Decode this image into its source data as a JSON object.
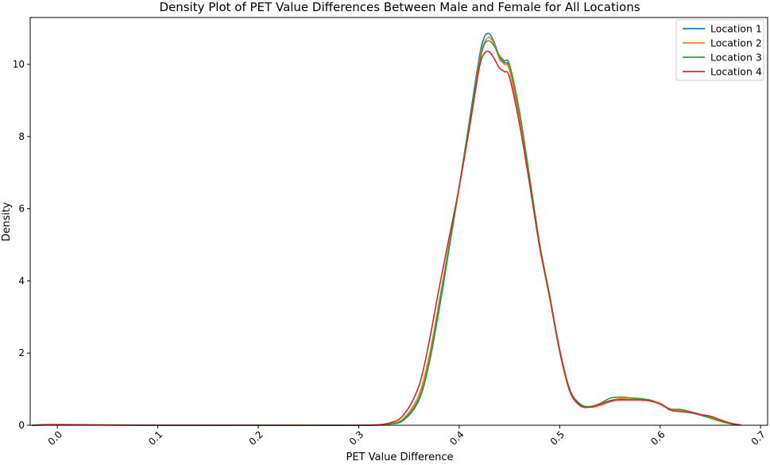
{
  "chart_data": {
    "type": "line",
    "title": "Density Plot of PET Value Differences Between Male and Female for All Locations",
    "xlabel": "PET Value Difference",
    "ylabel": "Density",
    "xlim": [
      -0.027,
      0.707
    ],
    "ylim": [
      0,
      11.3
    ],
    "xticks": [
      0.0,
      0.1,
      0.2,
      0.3,
      0.4,
      0.5,
      0.6,
      0.7
    ],
    "xtick_labels": [
      "0.0",
      "0.1",
      "0.2",
      "0.3",
      "0.4",
      "0.5",
      "0.6",
      "0.7"
    ],
    "yticks": [
      0,
      2,
      4,
      6,
      8,
      10
    ],
    "ytick_labels": [
      "0",
      "2",
      "4",
      "6",
      "8",
      "10"
    ],
    "grid": false,
    "legend_position": "top-right",
    "series": [
      {
        "name": "Location 1",
        "color": "#1f77b4",
        "x": [
          -0.025,
          0.0,
          0.1,
          0.2,
          0.3,
          0.33,
          0.345,
          0.36,
          0.37,
          0.38,
          0.39,
          0.4,
          0.41,
          0.42,
          0.425,
          0.43,
          0.435,
          0.44,
          0.445,
          0.45,
          0.46,
          0.47,
          0.48,
          0.49,
          0.5,
          0.51,
          0.52,
          0.53,
          0.54,
          0.55,
          0.56,
          0.57,
          0.58,
          0.59,
          0.6,
          0.61,
          0.62,
          0.63,
          0.64,
          0.65,
          0.66,
          0.67,
          0.68
        ],
        "y": [
          0.0,
          0.01,
          0.0,
          0.0,
          0.0,
          0.03,
          0.15,
          0.7,
          1.7,
          3.2,
          4.9,
          6.6,
          8.4,
          10.2,
          10.75,
          10.85,
          10.6,
          10.2,
          10.05,
          9.9,
          8.5,
          6.8,
          5.0,
          3.6,
          2.1,
          1.0,
          0.6,
          0.5,
          0.55,
          0.65,
          0.72,
          0.7,
          0.7,
          0.68,
          0.6,
          0.45,
          0.4,
          0.35,
          0.28,
          0.2,
          0.12,
          0.05,
          0.01
        ]
      },
      {
        "name": "Location 2",
        "color": "#ff7f0e",
        "x": [
          -0.025,
          0.0,
          0.1,
          0.2,
          0.3,
          0.33,
          0.345,
          0.36,
          0.37,
          0.38,
          0.39,
          0.4,
          0.41,
          0.42,
          0.425,
          0.43,
          0.435,
          0.44,
          0.445,
          0.45,
          0.46,
          0.47,
          0.48,
          0.49,
          0.5,
          0.51,
          0.52,
          0.53,
          0.54,
          0.55,
          0.56,
          0.57,
          0.58,
          0.59,
          0.6,
          0.61,
          0.62,
          0.63,
          0.64,
          0.65,
          0.66,
          0.67,
          0.68
        ],
        "y": [
          0.0,
          0.01,
          0.0,
          0.0,
          0.0,
          0.04,
          0.2,
          0.85,
          1.9,
          3.4,
          5.0,
          6.6,
          8.3,
          10.1,
          10.6,
          10.75,
          10.55,
          10.15,
          10.0,
          9.85,
          8.45,
          6.75,
          5.0,
          3.55,
          2.05,
          0.95,
          0.55,
          0.5,
          0.55,
          0.68,
          0.74,
          0.72,
          0.72,
          0.68,
          0.58,
          0.44,
          0.4,
          0.36,
          0.3,
          0.22,
          0.12,
          0.05,
          0.01
        ]
      },
      {
        "name": "Location 3",
        "color": "#2ca02c",
        "x": [
          -0.025,
          0.0,
          0.1,
          0.2,
          0.3,
          0.33,
          0.345,
          0.36,
          0.37,
          0.38,
          0.39,
          0.4,
          0.41,
          0.42,
          0.425,
          0.43,
          0.435,
          0.44,
          0.445,
          0.45,
          0.46,
          0.47,
          0.48,
          0.49,
          0.5,
          0.51,
          0.52,
          0.53,
          0.54,
          0.55,
          0.56,
          0.57,
          0.58,
          0.59,
          0.6,
          0.61,
          0.62,
          0.63,
          0.64,
          0.65,
          0.66,
          0.67,
          0.68
        ],
        "y": [
          0.0,
          0.01,
          0.0,
          0.0,
          0.0,
          0.03,
          0.17,
          0.75,
          1.75,
          3.3,
          4.95,
          6.6,
          8.35,
          10.0,
          10.55,
          10.65,
          10.5,
          10.25,
          10.1,
          10.0,
          8.7,
          6.9,
          5.05,
          3.6,
          2.1,
          1.0,
          0.58,
          0.52,
          0.6,
          0.75,
          0.78,
          0.76,
          0.74,
          0.7,
          0.6,
          0.45,
          0.44,
          0.38,
          0.3,
          0.2,
          0.11,
          0.04,
          0.01
        ]
      },
      {
        "name": "Location 4",
        "color": "#d62728",
        "x": [
          -0.025,
          0.0,
          0.1,
          0.2,
          0.3,
          0.33,
          0.345,
          0.36,
          0.37,
          0.38,
          0.39,
          0.4,
          0.41,
          0.42,
          0.425,
          0.43,
          0.435,
          0.44,
          0.445,
          0.45,
          0.46,
          0.47,
          0.48,
          0.49,
          0.5,
          0.51,
          0.52,
          0.53,
          0.54,
          0.55,
          0.56,
          0.57,
          0.58,
          0.59,
          0.6,
          0.61,
          0.62,
          0.63,
          0.64,
          0.65,
          0.66,
          0.67,
          0.68
        ],
        "y": [
          0.0,
          0.02,
          0.0,
          0.0,
          0.0,
          0.06,
          0.3,
          1.1,
          2.3,
          3.8,
          5.2,
          6.6,
          8.2,
          9.9,
          10.3,
          10.35,
          10.15,
          9.9,
          9.8,
          9.65,
          8.35,
          6.7,
          4.95,
          3.55,
          2.05,
          0.95,
          0.55,
          0.5,
          0.58,
          0.68,
          0.7,
          0.7,
          0.7,
          0.67,
          0.6,
          0.42,
          0.38,
          0.35,
          0.3,
          0.25,
          0.15,
          0.06,
          0.01
        ]
      }
    ]
  }
}
